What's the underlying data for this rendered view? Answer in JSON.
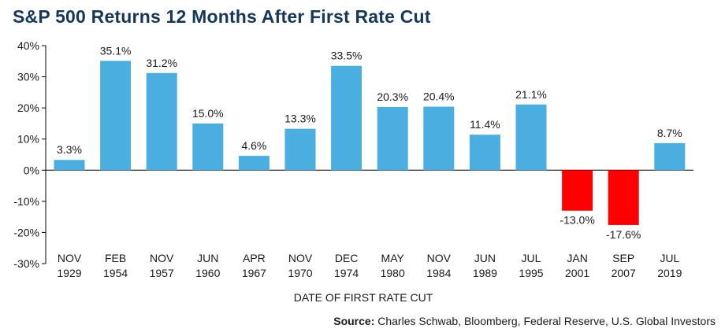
{
  "chart_data": {
    "type": "bar",
    "title": "S&P 500 Returns 12 Months After First Rate Cut",
    "xlabel": "DATE OF FIRST RATE CUT",
    "ylabel": "",
    "ylim": [
      -30,
      40
    ],
    "yticks": [
      40,
      30,
      20,
      10,
      0,
      -10,
      -20,
      -30
    ],
    "ytick_labels": [
      "40%",
      "30%",
      "20%",
      "10%",
      "0%",
      "-10%",
      "-20%",
      "-30%"
    ],
    "categories": [
      [
        "NOV",
        "1929"
      ],
      [
        "FEB",
        "1954"
      ],
      [
        "NOV",
        "1957"
      ],
      [
        "JUN",
        "1960"
      ],
      [
        "APR",
        "1967"
      ],
      [
        "NOV",
        "1970"
      ],
      [
        "DEC",
        "1974"
      ],
      [
        "MAY",
        "1980"
      ],
      [
        "NOV",
        "1984"
      ],
      [
        "JUN",
        "1989"
      ],
      [
        "JUL",
        "1995"
      ],
      [
        "JAN",
        "2001"
      ],
      [
        "SEP",
        "2007"
      ],
      [
        "JUL",
        "2019"
      ]
    ],
    "values": [
      3.3,
      35.1,
      31.2,
      15.0,
      4.6,
      13.3,
      33.5,
      20.3,
      20.4,
      11.4,
      21.1,
      -13.0,
      -17.6,
      8.7
    ],
    "value_labels": [
      "3.3%",
      "35.1%",
      "31.2%",
      "15.0%",
      "4.6%",
      "13.3%",
      "33.5%",
      "20.3%",
      "20.4%",
      "11.4%",
      "21.1%",
      "-13.0%",
      "-17.6%",
      "8.7%"
    ],
    "colors": {
      "positive": "#4aaee0",
      "negative": "#ff0000",
      "title": "#14375a",
      "axis": "#000000"
    },
    "grid": false,
    "legend": "none"
  },
  "source": {
    "prefix": "Source:",
    "text": " Charles Schwab, Bloomberg, Federal Reserve, U.S. Global Investors"
  }
}
